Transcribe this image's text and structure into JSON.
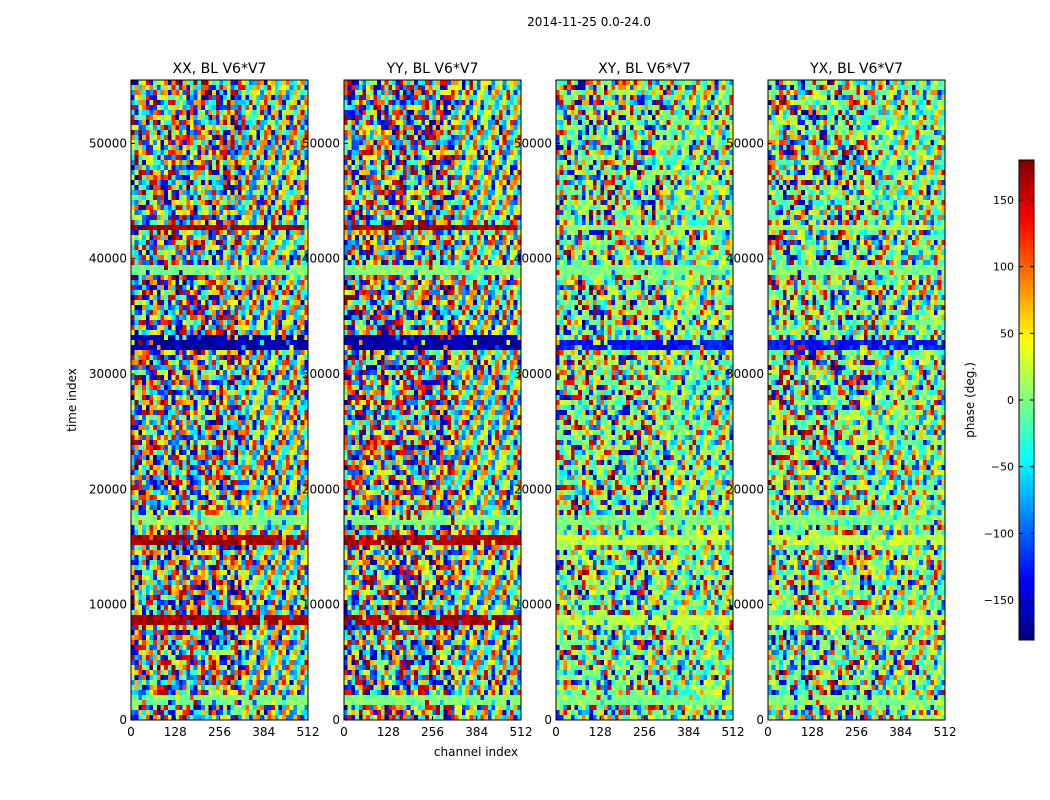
{
  "figure_title": "2014-11-25 0.0-24.0",
  "chart_data": {
    "type": "heatmap",
    "xlabel": "channel index",
    "ylabel": "time index",
    "x_range": [
      0,
      512
    ],
    "y_range": [
      0,
      55500
    ],
    "x_ticks": [
      "0",
      "128",
      "256",
      "384",
      "512"
    ],
    "y_ticks": [
      "0",
      "10000",
      "20000",
      "30000",
      "40000",
      "50000"
    ],
    "x_tick_values": [
      0,
      128,
      256,
      384,
      512
    ],
    "y_tick_values": [
      0,
      10000,
      20000,
      30000,
      40000,
      50000
    ],
    "panels": [
      {
        "title": "XX, BL V6*V7",
        "pol": "XX"
      },
      {
        "title": "YY, BL V6*V7",
        "pol": "YY"
      },
      {
        "title": "XY, BL V6*V7",
        "pol": "XY"
      },
      {
        "title": "YX, BL V6*V7",
        "pol": "YX"
      }
    ],
    "colorbar": {
      "label": "phase (deg.)",
      "range": [
        -180,
        180
      ],
      "ticks": [
        "150",
        "100",
        "50",
        "0",
        "−50",
        "−100",
        "−150"
      ],
      "tick_values": [
        150,
        100,
        50,
        0,
        -50,
        -100,
        -150
      ],
      "colormap": "jet"
    },
    "colormap_colors": [
      "#00007f",
      "#0000ff",
      "#007fff",
      "#00ffff",
      "#7fff7f",
      "#ffff00",
      "#ff7f00",
      "#ff0000",
      "#7f0000"
    ]
  }
}
